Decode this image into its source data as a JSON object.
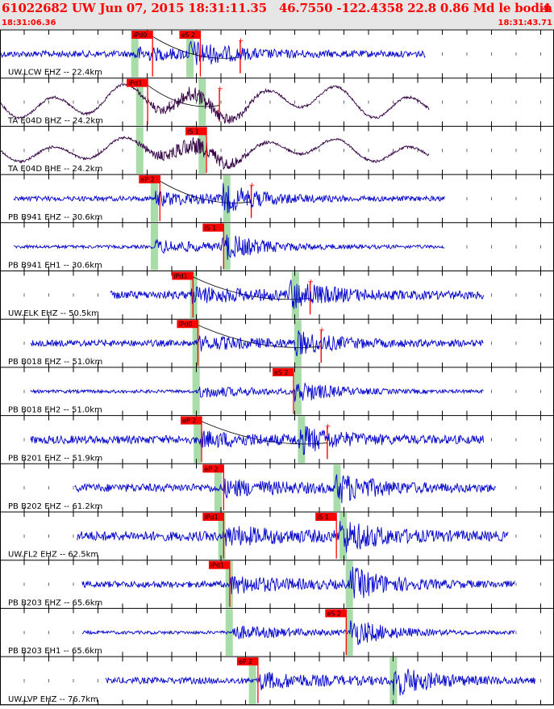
{
  "header": {
    "title": "61022682 UW Jun 07, 2015 18:31:11.35   46.7550 -122.4358 22.8 0.86 Md le bodin -- --",
    "page_number": "4",
    "start_time": "18:31:06.36",
    "end_time": "18:31:43.71"
  },
  "colors": {
    "trace_blue": "#0000cc",
    "trace_dark": "#330044",
    "pick_red": "#ff0000",
    "window_green": "#a8dca8",
    "header_bg": "#e6e6e6"
  },
  "chart_data": {
    "type": "line",
    "title": "61022682 UW Jun 07, 2015 18:31:11.35   46.7550 -122.4358 22.8 0.86 Md le bodin -- --",
    "x_range_time": [
      "18:31:06.36",
      "18:31:43.71"
    ],
    "x_range_seconds": [
      0,
      37.35
    ],
    "grid": true,
    "series": [
      {
        "name": "UW.LCW EHZ -- 22.4km",
        "color": "#0000cc",
        "style": "hf",
        "amp": 4,
        "data_start": 0.0,
        "data_end": 34.7,
        "onset_p": 10.9,
        "onset_s": 15.4,
        "burst_amp": 13,
        "picks": [
          {
            "label": "iPd0",
            "t": 10.8
          },
          {
            "label": "eS 2",
            "t": 14.7
          }
        ],
        "green": [
          10.9,
          15.4
        ],
        "extra_tick": 19.6
      },
      {
        "name": "TA E04D BHZ -- 24.2km",
        "color": "#330044",
        "style": "wave",
        "amp": 14,
        "data_start": 0.0,
        "data_end": 35.0,
        "onset_p": 11.0,
        "onset_s": 16.0,
        "burst_amp": 14,
        "picks": [
          {
            "label": "iPd1",
            "t": 10.4
          }
        ],
        "green": [
          11.3,
          16.4
        ],
        "extra_tick": 17.9
      },
      {
        "name": "TA E04D BHE -- 24.2km",
        "color": "#330044",
        "style": "wave",
        "amp": 10,
        "data_start": 0.0,
        "data_end": 35.0,
        "onset_p": 11.0,
        "onset_s": 16.0,
        "burst_amp": 16,
        "picks": [
          {
            "label": "iS 1",
            "t": 15.2
          }
        ],
        "green": [
          11.3,
          16.4
        ],
        "extra_tick": null
      },
      {
        "name": "PB B941 EHZ -- 30.6km",
        "color": "#0000cc",
        "style": "hf",
        "amp": 3,
        "data_start": 1.1,
        "data_end": 36.3,
        "onset_p": 12.7,
        "onset_s": 18.1,
        "burst_amp": 15,
        "picks": [
          {
            "label": "eP 2",
            "t": 11.4
          }
        ],
        "green": [
          12.5,
          18.4
        ],
        "extra_tick": 20.5
      },
      {
        "name": "PB B941 EH1 -- 30.6km",
        "color": "#0000cc",
        "style": "hf",
        "amp": 2,
        "data_start": 1.1,
        "data_end": 36.3,
        "onset_p": 12.7,
        "onset_s": 18.1,
        "burst_amp": 15,
        "picks": [
          {
            "label": "iS 1",
            "t": 16.6
          }
        ],
        "green": [
          12.5,
          18.4
        ],
        "extra_tick": null
      },
      {
        "name": "UW.ELK EHZ -- 50.5km",
        "color": "#0000cc",
        "style": "hf",
        "amp": 5,
        "data_start": 9.0,
        "data_end": 39.5,
        "onset_p": 15.6,
        "onset_s": 23.6,
        "burst_amp": 15,
        "picks": [
          {
            "label": "iPd1",
            "t": 14.1
          }
        ],
        "green": [
          15.7,
          24.0
        ],
        "extra_tick": 25.3
      },
      {
        "name": "PB B018 EHZ -- 51.0km",
        "color": "#0000cc",
        "style": "hf",
        "amp": 4,
        "data_start": 2.5,
        "data_end": 39.5,
        "onset_p": 16.2,
        "onset_s": 24.0,
        "burst_amp": 13,
        "picks": [
          {
            "label": "iPd0",
            "t": 14.5
          }
        ],
        "green": [
          15.9,
          24.2
        ],
        "extra_tick": 26.2
      },
      {
        "name": "PB B018 EH2 -- 51.0km",
        "color": "#0000cc",
        "style": "hf",
        "amp": 2,
        "data_start": 2.5,
        "data_end": 39.5,
        "onset_p": 16.2,
        "onset_s": 24.0,
        "burst_amp": 13,
        "picks": [
          {
            "label": "eS 2",
            "t": 22.3
          }
        ],
        "green": [
          15.9,
          24.2
        ],
        "extra_tick": null
      },
      {
        "name": "PB B201 EHZ -- 51.9km",
        "color": "#0000cc",
        "style": "hf",
        "amp": 5,
        "data_start": 2.5,
        "data_end": 39.5,
        "onset_p": 16.4,
        "onset_s": 24.4,
        "burst_amp": 14,
        "picks": [
          {
            "label": "eP 2",
            "t": 14.8
          }
        ],
        "green": [
          16.0,
          24.5
        ],
        "extra_tick": 26.7
      },
      {
        "name": "PB B202 EHZ -- 61.2km",
        "color": "#0000cc",
        "style": "hf",
        "amp": 5,
        "data_start": 6.1,
        "data_end": 40.5,
        "onset_p": 18.2,
        "onset_s": 27.4,
        "burst_amp": 16,
        "picks": [
          {
            "label": "eP 2",
            "t": 16.6
          }
        ],
        "green": [
          17.7,
          27.4
        ],
        "extra_tick": null
      },
      {
        "name": "UW.FL2 EHZ -- 62.5km",
        "color": "#0000cc",
        "style": "hf",
        "amp": 6,
        "data_start": 6.3,
        "data_end": 41.5,
        "onset_p": 18.4,
        "onset_s": 27.7,
        "burst_amp": 17,
        "picks": [
          {
            "label": "iPd1",
            "t": 16.6
          },
          {
            "label": "iS 1",
            "t": 25.8
          }
        ],
        "green": [
          18.0,
          27.9
        ],
        "extra_tick": null
      },
      {
        "name": "PB B203 EHZ -- 65.6km",
        "color": "#0000cc",
        "style": "hf",
        "amp": 4,
        "data_start": 6.7,
        "data_end": 42.0,
        "onset_p": 18.8,
        "onset_s": 28.6,
        "burst_amp": 18,
        "picks": [
          {
            "label": "iPd1",
            "t": 17.1
          }
        ],
        "green": [
          18.6,
          28.4
        ],
        "extra_tick": null
      },
      {
        "name": "PB B203 EH1 -- 65.6km",
        "color": "#0000cc",
        "style": "hf",
        "amp": 2,
        "data_start": 6.7,
        "data_end": 42.0,
        "onset_p": 18.8,
        "onset_s": 28.6,
        "burst_amp": 16,
        "picks": [
          {
            "label": "eS 2",
            "t": 26.6
          }
        ],
        "green": [
          18.6,
          28.4
        ],
        "extra_tick": null
      },
      {
        "name": "UW.LVP EHZ -- 76.7km",
        "color": "#0000cc",
        "style": "hf",
        "amp": 4,
        "data_start": 8.6,
        "data_end": 43.7,
        "onset_p": 21.2,
        "onset_s": 32.1,
        "burst_amp": 17,
        "picks": [
          {
            "label": "eP 2",
            "t": 19.4
          }
        ],
        "green": [
          20.5,
          32.0
        ],
        "extra_tick": null
      }
    ]
  }
}
